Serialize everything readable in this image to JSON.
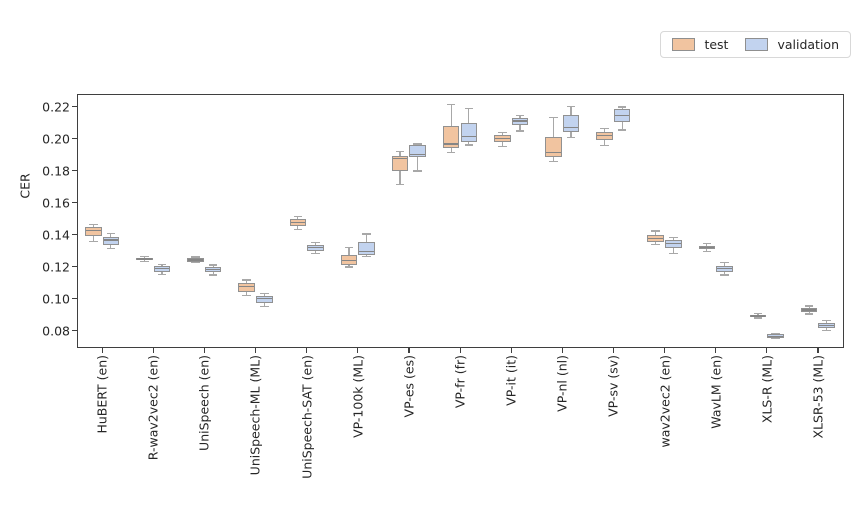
{
  "chart_data": {
    "type": "boxplot",
    "title": "",
    "xlabel": "",
    "ylabel": "CER",
    "grid": false,
    "legend": {
      "position": "upper right",
      "entries": [
        {
          "label": "test",
          "color": "#f1c4a0"
        },
        {
          "label": "validation",
          "color": "#c2d3ef"
        }
      ]
    },
    "ylim": [
      0.0692,
      0.2282
    ],
    "yticks": [
      0.08,
      0.1,
      0.12,
      0.14,
      0.16,
      0.18,
      0.2,
      0.22
    ],
    "categories": [
      "HuBERT (en)",
      "R-wav2vec2 (en)",
      "UniSpeech (en)",
      "UniSpeech-ML (ML)",
      "UniSpeech-SAT (en)",
      "VP-100k (ML)",
      "VP-es (es)",
      "VP-fr (fr)",
      "VP-it (it)",
      "VP-nl (nl)",
      "VP-sv (sv)",
      "wav2vec2 (en)",
      "WavLM (en)",
      "XLS-R (ML)",
      "XLSR-53 (ML)"
    ],
    "series": [
      {
        "name": "test",
        "color": "#f1c4a0",
        "boxes": [
          {
            "whisker_low": 0.1355,
            "q1": 0.139,
            "median": 0.1424,
            "q3": 0.1446,
            "whisker_high": 0.1466
          },
          {
            "whisker_low": 0.1232,
            "q1": 0.124,
            "median": 0.1248,
            "q3": 0.1256,
            "whisker_high": 0.1263
          },
          {
            "whisker_low": 0.1226,
            "q1": 0.1232,
            "median": 0.1242,
            "q3": 0.1253,
            "whisker_high": 0.126
          },
          {
            "whisker_low": 0.1022,
            "q1": 0.1044,
            "median": 0.1075,
            "q3": 0.1096,
            "whisker_high": 0.1117
          },
          {
            "whisker_low": 0.1434,
            "q1": 0.1455,
            "median": 0.1478,
            "q3": 0.1497,
            "whisker_high": 0.1513
          },
          {
            "whisker_low": 0.1198,
            "q1": 0.1212,
            "median": 0.1238,
            "q3": 0.1273,
            "whisker_high": 0.1321
          },
          {
            "whisker_low": 0.1711,
            "q1": 0.1798,
            "median": 0.1878,
            "q3": 0.1892,
            "whisker_high": 0.1919
          },
          {
            "whisker_low": 0.1915,
            "q1": 0.194,
            "median": 0.1967,
            "q3": 0.2079,
            "whisker_high": 0.2215
          },
          {
            "whisker_low": 0.195,
            "q1": 0.1981,
            "median": 0.2003,
            "q3": 0.2023,
            "whisker_high": 0.204
          },
          {
            "whisker_low": 0.1856,
            "q1": 0.1888,
            "median": 0.1915,
            "q3": 0.2013,
            "whisker_high": 0.2131
          },
          {
            "whisker_low": 0.1956,
            "q1": 0.1992,
            "median": 0.2019,
            "q3": 0.2044,
            "whisker_high": 0.2061
          },
          {
            "whisker_low": 0.134,
            "q1": 0.1353,
            "median": 0.1378,
            "q3": 0.1398,
            "whisker_high": 0.1423
          },
          {
            "whisker_low": 0.1294,
            "q1": 0.1311,
            "median": 0.1322,
            "q3": 0.1331,
            "whisker_high": 0.1346
          },
          {
            "whisker_low": 0.0879,
            "q1": 0.0883,
            "median": 0.0892,
            "q3": 0.0901,
            "whisker_high": 0.0907
          },
          {
            "whisker_low": 0.0904,
            "q1": 0.0915,
            "median": 0.093,
            "q3": 0.0944,
            "whisker_high": 0.0954
          }
        ]
      },
      {
        "name": "validation",
        "color": "#c2d3ef",
        "boxes": [
          {
            "whisker_low": 0.1315,
            "q1": 0.1336,
            "median": 0.1367,
            "q3": 0.1388,
            "whisker_high": 0.1409
          },
          {
            "whisker_low": 0.1153,
            "q1": 0.1169,
            "median": 0.119,
            "q3": 0.1206,
            "whisker_high": 0.1216
          },
          {
            "whisker_low": 0.1148,
            "q1": 0.1165,
            "median": 0.1184,
            "q3": 0.12,
            "whisker_high": 0.1211
          },
          {
            "whisker_low": 0.095,
            "q1": 0.0971,
            "median": 0.1003,
            "q3": 0.1019,
            "whisker_high": 0.1034
          },
          {
            "whisker_low": 0.1284,
            "q1": 0.13,
            "median": 0.1321,
            "q3": 0.1336,
            "whisker_high": 0.135
          },
          {
            "whisker_low": 0.1263,
            "q1": 0.1273,
            "median": 0.1294,
            "q3": 0.1356,
            "whisker_high": 0.1404
          },
          {
            "whisker_low": 0.1798,
            "q1": 0.1888,
            "median": 0.19,
            "q3": 0.1961,
            "whisker_high": 0.1967
          },
          {
            "whisker_low": 0.196,
            "q1": 0.1981,
            "median": 0.2013,
            "q3": 0.2096,
            "whisker_high": 0.219
          },
          {
            "whisker_low": 0.2048,
            "q1": 0.2086,
            "median": 0.2111,
            "q3": 0.2128,
            "whisker_high": 0.2144
          },
          {
            "whisker_low": 0.2006,
            "q1": 0.2044,
            "median": 0.2069,
            "q3": 0.2148,
            "whisker_high": 0.22
          },
          {
            "whisker_low": 0.2054,
            "q1": 0.2106,
            "median": 0.2145,
            "q3": 0.2186,
            "whisker_high": 0.2198
          },
          {
            "whisker_low": 0.1284,
            "q1": 0.1315,
            "median": 0.1346,
            "q3": 0.1367,
            "whisker_high": 0.1381
          },
          {
            "whisker_low": 0.1148,
            "q1": 0.1169,
            "median": 0.119,
            "q3": 0.1206,
            "whisker_high": 0.1225
          },
          {
            "whisker_low": 0.075,
            "q1": 0.0756,
            "median": 0.0766,
            "q3": 0.0777,
            "whisker_high": 0.0783
          },
          {
            "whisker_low": 0.0803,
            "q1": 0.0815,
            "median": 0.0833,
            "q3": 0.085,
            "whisker_high": 0.0863
          }
        ]
      }
    ],
    "colors": {
      "spine": "#3f3f3f",
      "box_edge": "#919191",
      "whisker": "#a8a8a8",
      "median": "#858585",
      "tick_text": "#262626",
      "background": "#ffffff"
    }
  }
}
